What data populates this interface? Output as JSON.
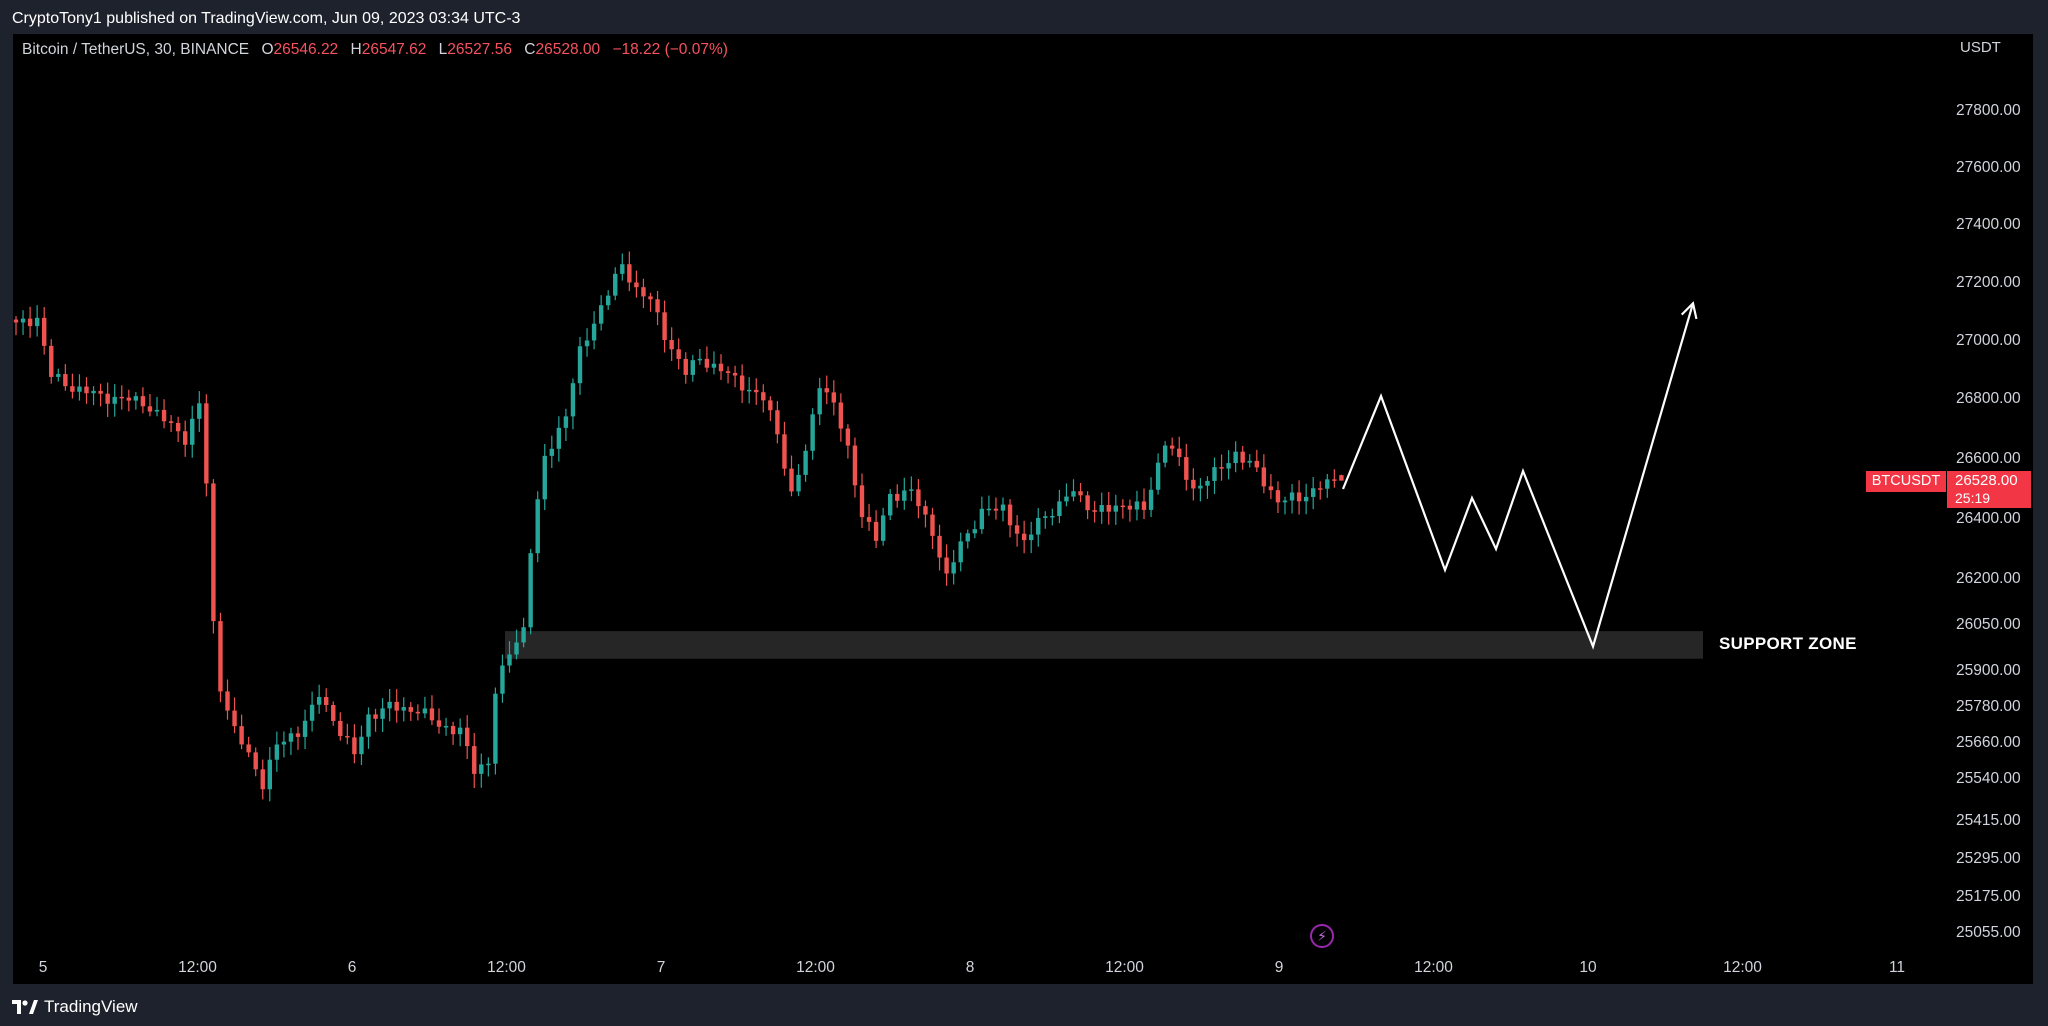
{
  "header": {
    "published_by": "CryptoTony1 published on TradingView.com, Jun 09, 2023 03:34 UTC-3"
  },
  "symbol": {
    "name": "Bitcoin / TetherUS, 30, BINANCE",
    "open_label": "O",
    "open": "26546.22",
    "high_label": "H",
    "high": "26547.62",
    "low_label": "L",
    "low": "26527.56",
    "close_label": "C",
    "close": "26528.00",
    "change": "−18.22 (−0.07%)"
  },
  "axis": {
    "unit": "USDT",
    "y_ticks": [
      "27800.00",
      "27600.00",
      "27400.00",
      "27200.00",
      "27000.00",
      "26800.00",
      "26600.00",
      "26400.00",
      "26200.00",
      "26050.00",
      "25900.00",
      "25780.00",
      "25660.00",
      "25540.00",
      "25415.00",
      "25295.00",
      "25175.00",
      "25055.00"
    ],
    "x_ticks": [
      "5",
      "12:00",
      "6",
      "12:00",
      "7",
      "12:00",
      "8",
      "12:00",
      "9",
      "12:00",
      "10",
      "12:00",
      "11"
    ]
  },
  "price_tag": {
    "symbol": "BTCUSDT",
    "price": "26528.00",
    "countdown": "25:19",
    "color": "#f23645"
  },
  "annotation": {
    "support_label": "SUPPORT ZONE",
    "zone_low": 25940,
    "zone_high": 26030
  },
  "footer": {
    "brand": "TradingView"
  },
  "icons": {
    "bolt": "lightning-icon",
    "logo": "tradingview-logo-icon"
  },
  "chart_data": {
    "type": "candlestick",
    "interval": "30",
    "y_range": [
      25000,
      27950
    ],
    "colors": {
      "up": "#26a69a",
      "down": "#ef5350",
      "projection": "#ffffff",
      "zone": "#262626"
    },
    "price_anchors": [
      [
        0,
        27055
      ],
      [
        3,
        27080
      ],
      [
        5,
        26880
      ],
      [
        8,
        26840
      ],
      [
        12,
        26810
      ],
      [
        18,
        26790
      ],
      [
        24,
        26670
      ],
      [
        26,
        26780
      ],
      [
        27,
        26520
      ],
      [
        28,
        26050
      ],
      [
        29,
        25850
      ],
      [
        31,
        25700
      ],
      [
        33,
        25620
      ],
      [
        35,
        25530
      ],
      [
        37,
        25650
      ],
      [
        40,
        25700
      ],
      [
        42,
        25770
      ],
      [
        43,
        25820
      ],
      [
        46,
        25700
      ],
      [
        48,
        25620
      ],
      [
        50,
        25750
      ],
      [
        53,
        25780
      ],
      [
        57,
        25770
      ],
      [
        60,
        25720
      ],
      [
        63,
        25700
      ],
      [
        65,
        25570
      ],
      [
        67,
        25600
      ],
      [
        68,
        25830
      ],
      [
        70,
        25960
      ],
      [
        72,
        26040
      ],
      [
        73,
        26300
      ],
      [
        75,
        26600
      ],
      [
        78,
        26750
      ],
      [
        80,
        26960
      ],
      [
        83,
        27120
      ],
      [
        86,
        27260
      ],
      [
        88,
        27180
      ],
      [
        90,
        27140
      ],
      [
        92,
        27020
      ],
      [
        95,
        26890
      ],
      [
        97,
        26940
      ],
      [
        100,
        26900
      ],
      [
        103,
        26850
      ],
      [
        106,
        26800
      ],
      [
        108,
        26690
      ],
      [
        110,
        26480
      ],
      [
        112,
        26620
      ],
      [
        114,
        26860
      ],
      [
        116,
        26780
      ],
      [
        118,
        26630
      ],
      [
        120,
        26420
      ],
      [
        122,
        26330
      ],
      [
        124,
        26480
      ],
      [
        127,
        26490
      ],
      [
        130,
        26360
      ],
      [
        132,
        26200
      ],
      [
        134,
        26320
      ],
      [
        137,
        26420
      ],
      [
        140,
        26440
      ],
      [
        143,
        26310
      ],
      [
        145,
        26400
      ],
      [
        148,
        26440
      ],
      [
        150,
        26500
      ],
      [
        153,
        26420
      ],
      [
        157,
        26450
      ],
      [
        160,
        26430
      ],
      [
        163,
        26660
      ],
      [
        165,
        26590
      ],
      [
        167,
        26500
      ],
      [
        170,
        26550
      ],
      [
        173,
        26620
      ],
      [
        176,
        26560
      ],
      [
        179,
        26460
      ],
      [
        182,
        26470
      ],
      [
        185,
        26510
      ],
      [
        188,
        26528
      ]
    ],
    "projection_path": [
      [
        26500,
        0
      ],
      [
        26810,
        1
      ],
      [
        26230,
        2
      ],
      [
        26470,
        3
      ],
      [
        26300,
        4
      ],
      [
        26560,
        5
      ],
      [
        25980,
        6
      ],
      [
        27130,
        7
      ]
    ],
    "last": {
      "open": 26546.22,
      "high": 26547.62,
      "low": 26527.56,
      "close": 26528.0
    }
  }
}
